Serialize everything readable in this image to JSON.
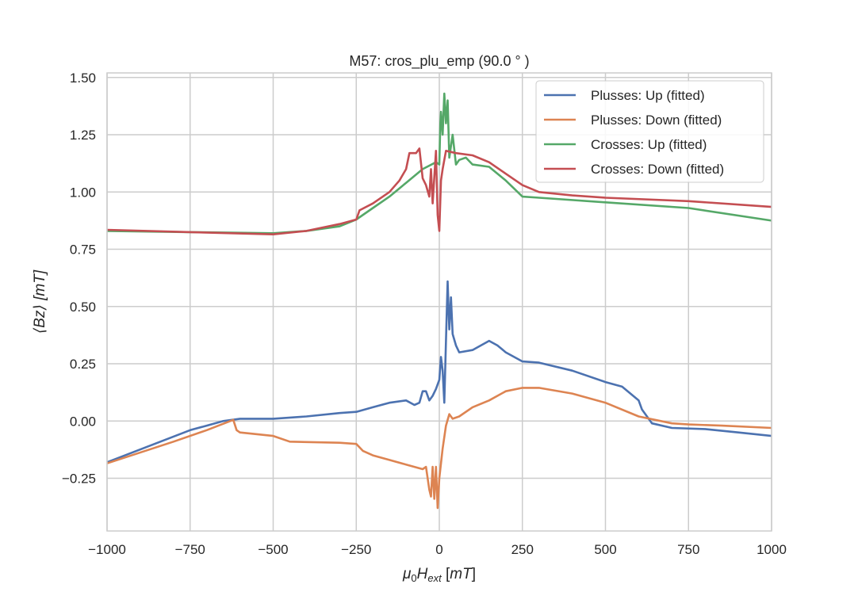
{
  "chart_data": {
    "type": "line",
    "title": "M57: cros_plu_emp (90.0 ° )",
    "xlabel": "μ0Hext [mT]",
    "ylabel": "⟨Bz⟩ [mT]",
    "xlim": [
      -1000,
      1000
    ],
    "ylim": [
      -0.48,
      1.52
    ],
    "xticks": [
      -1000,
      -750,
      -500,
      -250,
      0,
      250,
      500,
      750,
      1000
    ],
    "xtick_labels": [
      "−1000",
      "−750",
      "−500",
      "−250",
      "0",
      "250",
      "500",
      "750",
      "1000"
    ],
    "yticks": [
      -0.25,
      0,
      0.25,
      0.5,
      0.75,
      1.0,
      1.25,
      1.5
    ],
    "ytick_labels": [
      "−0.25",
      "0.00",
      "0.25",
      "0.50",
      "0.75",
      "1.00",
      "1.25",
      "1.50"
    ],
    "grid": true,
    "legend_position": "top-right",
    "series": [
      {
        "name": "Plusses: Up (fitted)",
        "color": "#4C72B0",
        "x": [
          -1000,
          -750,
          -700,
          -650,
          -600,
          -500,
          -400,
          -300,
          -250,
          -200,
          -150,
          -100,
          -75,
          -60,
          -50,
          -40,
          -30,
          -20,
          -10,
          0,
          5,
          10,
          15,
          20,
          25,
          30,
          35,
          40,
          50,
          60,
          100,
          150,
          175,
          200,
          250,
          300,
          400,
          500,
          550,
          600,
          610,
          640,
          700,
          800,
          900,
          1000
        ],
        "y": [
          -0.18,
          -0.04,
          -0.02,
          0.0,
          0.01,
          0.01,
          0.02,
          0.035,
          0.04,
          0.06,
          0.08,
          0.09,
          0.07,
          0.08,
          0.13,
          0.13,
          0.09,
          0.11,
          0.14,
          0.18,
          0.28,
          0.22,
          0.08,
          0.35,
          0.61,
          0.4,
          0.54,
          0.38,
          0.33,
          0.3,
          0.31,
          0.35,
          0.33,
          0.3,
          0.26,
          0.255,
          0.22,
          0.17,
          0.15,
          0.09,
          0.05,
          -0.01,
          -0.03,
          -0.035,
          -0.05,
          -0.065
        ]
      },
      {
        "name": "Plusses: Down (fitted)",
        "color": "#DD8452",
        "x": [
          -1000,
          -800,
          -700,
          -620,
          -610,
          -600,
          -500,
          -450,
          -300,
          -250,
          -230,
          -200,
          -150,
          -100,
          -50,
          -40,
          -30,
          -25,
          -20,
          -15,
          -10,
          -5,
          0,
          10,
          20,
          30,
          40,
          60,
          100,
          150,
          200,
          250,
          300,
          400,
          500,
          600,
          700,
          750,
          850,
          1000
        ],
        "y": [
          -0.185,
          -0.09,
          -0.04,
          0.005,
          -0.04,
          -0.05,
          -0.065,
          -0.09,
          -0.095,
          -0.1,
          -0.13,
          -0.15,
          -0.17,
          -0.19,
          -0.21,
          -0.2,
          -0.3,
          -0.33,
          -0.2,
          -0.34,
          -0.2,
          -0.38,
          -0.25,
          -0.12,
          -0.02,
          0.03,
          0.01,
          0.02,
          0.06,
          0.09,
          0.13,
          0.145,
          0.145,
          0.12,
          0.08,
          0.02,
          -0.01,
          -0.015,
          -0.02,
          -0.03
        ]
      },
      {
        "name": "Crosses: Up (fitted)",
        "color": "#55A868",
        "x": [
          -1000,
          -750,
          -500,
          -400,
          -300,
          -250,
          -200,
          -150,
          -100,
          -50,
          -10,
          0,
          3,
          5,
          10,
          15,
          20,
          25,
          30,
          40,
          50,
          60,
          80,
          100,
          150,
          200,
          250,
          300,
          500,
          750,
          1000
        ],
        "y": [
          0.83,
          0.825,
          0.82,
          0.83,
          0.85,
          0.88,
          0.93,
          0.98,
          1.04,
          1.1,
          1.13,
          1.12,
          1.3,
          1.35,
          1.25,
          1.43,
          1.3,
          1.4,
          1.15,
          1.25,
          1.12,
          1.14,
          1.15,
          1.12,
          1.11,
          1.05,
          0.98,
          0.975,
          0.955,
          0.93,
          0.875
        ]
      },
      {
        "name": "Crosses: Down (fitted)",
        "color": "#C44E52",
        "x": [
          -1000,
          -750,
          -500,
          -400,
          -300,
          -250,
          -240,
          -200,
          -150,
          -120,
          -100,
          -90,
          -70,
          -60,
          -50,
          -40,
          -30,
          -25,
          -20,
          -10,
          -5,
          0,
          5,
          10,
          20,
          50,
          100,
          150,
          200,
          250,
          300,
          400,
          500,
          750,
          1000
        ],
        "y": [
          0.835,
          0.825,
          0.815,
          0.83,
          0.86,
          0.88,
          0.92,
          0.95,
          1.0,
          1.05,
          1.1,
          1.17,
          1.17,
          1.19,
          1.06,
          1.03,
          0.98,
          1.1,
          0.95,
          1.18,
          0.9,
          0.83,
          1.05,
          1.1,
          1.18,
          1.17,
          1.16,
          1.13,
          1.08,
          1.03,
          1.0,
          0.985,
          0.975,
          0.96,
          0.935
        ]
      }
    ]
  }
}
